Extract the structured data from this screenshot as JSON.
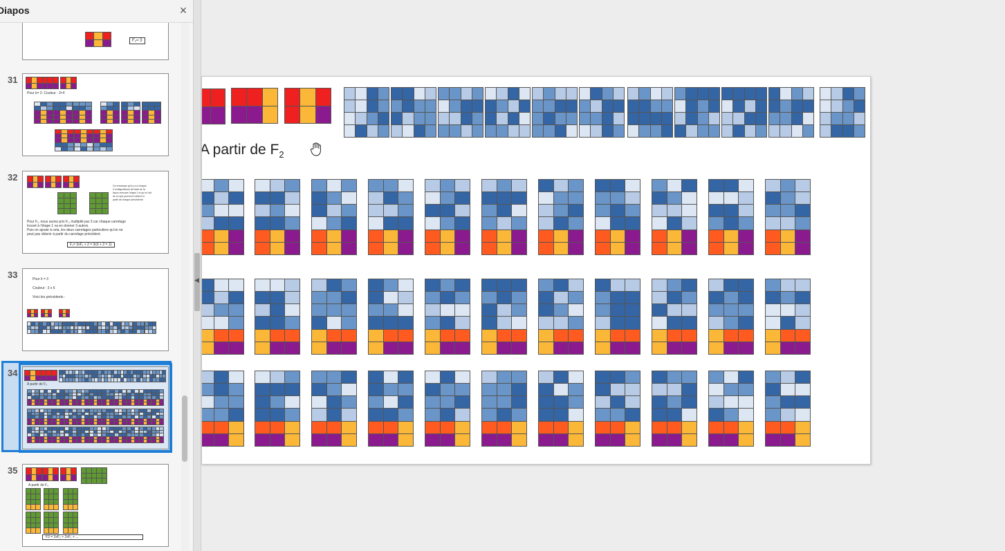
{
  "panel": {
    "title": "Diapos",
    "close_label": "×"
  },
  "slides": [
    {
      "number": "31",
      "text": [
        "Pour k= 2: Couleur : 3×4"
      ]
    },
    {
      "number": "32",
      "text": [
        "On remarque qu'il y a à chaque",
        "3 configurations de base de la",
        "façon retrouvé l'étape 1 et qu'on l'ait",
        "de ce que peuvent s'obtenir à",
        "partir de chaque précédente",
        "Pour F₁, nous avons pris F₁, multiplié par 3 car chaque carrelage",
        "trouvé à l'étape 1 va en donner 3 autres.",
        "Puis on ajoute à cela, les deux carrelages particuliers qu'on ne",
        "peut pas obtenir à partir du carrelage précédent."
      ],
      "formula": "F₂= 3xF₁ + 2 = 3x3 + 2 = 11"
    },
    {
      "number": "33",
      "text": [
        "Pour k = 3",
        "Couleur : 3 x 6",
        "Voici les précédents :"
      ]
    },
    {
      "number": "34",
      "text": [
        "A partir de F₂"
      ]
    },
    {
      "number": "35",
      "text": [
        "A partir de F₂"
      ],
      "formula": "F3 = 3xF₂ + 2xF₁ + ..."
    }
  ],
  "partial_slide_label": "F₂= 3",
  "main_slide": {
    "heading": "A partir de F",
    "heading_sub": "2"
  },
  "colors": {
    "red": "#ee2020",
    "orange": "#ff5a1f",
    "yellow": "#fbb738",
    "purple": "#8a1a8e",
    "dark_blue": "#3465a4",
    "mid_blue": "#6a95c8",
    "light_blue": "#b7cbe6",
    "pale_blue": "#dde7f4",
    "green": "#5f9a32",
    "selection": "#1c7ed6"
  }
}
